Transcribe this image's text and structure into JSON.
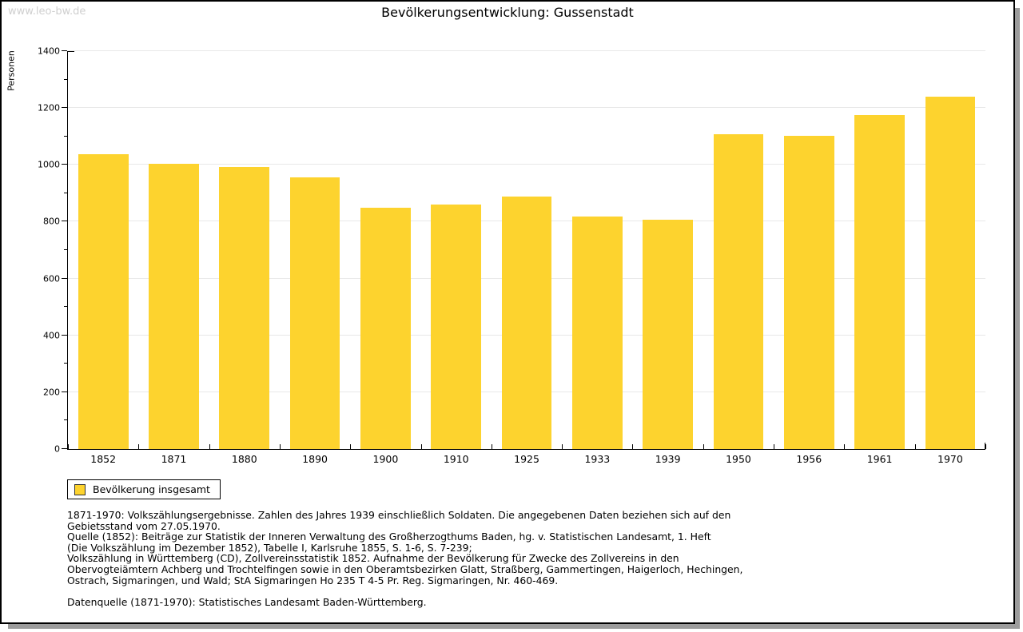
{
  "watermark": "www.leo-bw.de",
  "chart_data": {
    "type": "bar",
    "title": "Bevölkerungsentwicklung: Gussenstadt",
    "xlabel": "",
    "ylabel": "Personen",
    "categories": [
      "1852",
      "1871",
      "1880",
      "1890",
      "1900",
      "1910",
      "1925",
      "1933",
      "1939",
      "1950",
      "1956",
      "1961",
      "1970"
    ],
    "values": [
      1038,
      1005,
      992,
      957,
      850,
      861,
      887,
      817,
      807,
      1109,
      1103,
      1176,
      1240
    ],
    "ylim": [
      0,
      1400
    ],
    "yticks": [
      0,
      200,
      400,
      600,
      800,
      1000,
      1200,
      1400
    ],
    "yticks_minor": [
      100,
      300,
      500,
      700,
      900,
      1100,
      1300
    ],
    "grid": true,
    "legend_position": "bottom-left",
    "series_name": "Bevölkerung insgesamt"
  },
  "legend": {
    "label": "Bevölkerung insgesamt"
  },
  "colors": {
    "bar": "#FDD32E",
    "gridline": "#E8E8E8",
    "axis": "#000000",
    "watermark": "#CFCFCF",
    "frame_shadow": "#9C9C9C"
  },
  "footnotes": [
    "1871-1970: Volkszählungsergebnisse. Zahlen des Jahres 1939 einschließlich Soldaten. Die angegebenen Daten beziehen sich auf den",
    "Gebietsstand vom 27.05.1970.",
    "Quelle (1852): Beiträge zur Statistik der Inneren Verwaltung des Großherzogthums Baden, hg. v. Statistischen Landesamt, 1. Heft",
    "(Die Volkszählung im Dezember 1852), Tabelle I, Karlsruhe 1855, S. 1-6, S. 7-239;",
    "Volkszählung in Württemberg (CD), Zollvereinsstatistik 1852. Aufnahme der Bevölkerung für Zwecke des Zollvereins in den",
    "Obervogteiämtern Achberg und Trochtelfingen sowie in den Oberamtsbezirken Glatt, Straßberg, Gammertingen, Haigerloch, Hechingen,",
    "Ostrach, Sigmaringen, und Wald; StA Sigmaringen Ho 235 T 4-5 Pr. Reg. Sigmaringen, Nr. 460-469."
  ],
  "datasource": "Datenquelle (1871-1970): Statistisches Landesamt Baden-Württemberg."
}
